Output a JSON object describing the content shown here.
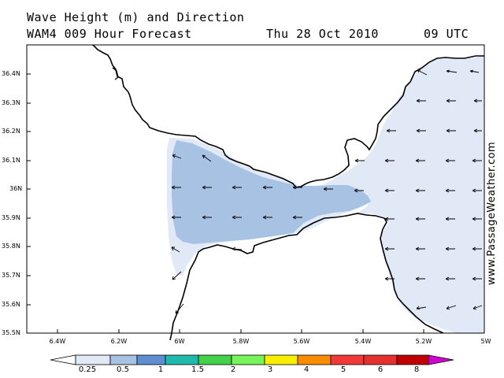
{
  "title": {
    "line1": "Wave Height (m) and Direction",
    "model": "WAM4 009 Hour Forecast",
    "date": "Thu 28 Oct 2010",
    "time": "09 UTC"
  },
  "map": {
    "lat_labels": [
      "36.4N",
      "36.3N",
      "36.2N",
      "36.1N",
      "36N",
      "35.9N",
      "35.8N",
      "35.7N",
      "35.6N",
      "35.5N"
    ],
    "lon_labels": [
      "6.4W",
      "6.2W",
      "6W",
      "5.8W",
      "5.6W",
      "5.4W",
      "5.2W",
      "5W"
    ],
    "land_color": "#ffffff",
    "sea_color": "#ffffff",
    "coast_color": "#000000"
  },
  "colorbar": {
    "labels": [
      "0.25",
      "0.5",
      "1",
      "1.5",
      "2",
      "3",
      "4",
      "5",
      "6",
      "8"
    ],
    "colors": [
      "#ffffff",
      "#e1e9f6",
      "#a8c2e4",
      "#5f8fd2",
      "#20b9ad",
      "#44d24a",
      "#77f35b",
      "#f9ee00",
      "#f98c00",
      "#f03a3a",
      "#c00000",
      "#d200d2"
    ]
  },
  "watermark": "www.PassageWeather.com"
}
